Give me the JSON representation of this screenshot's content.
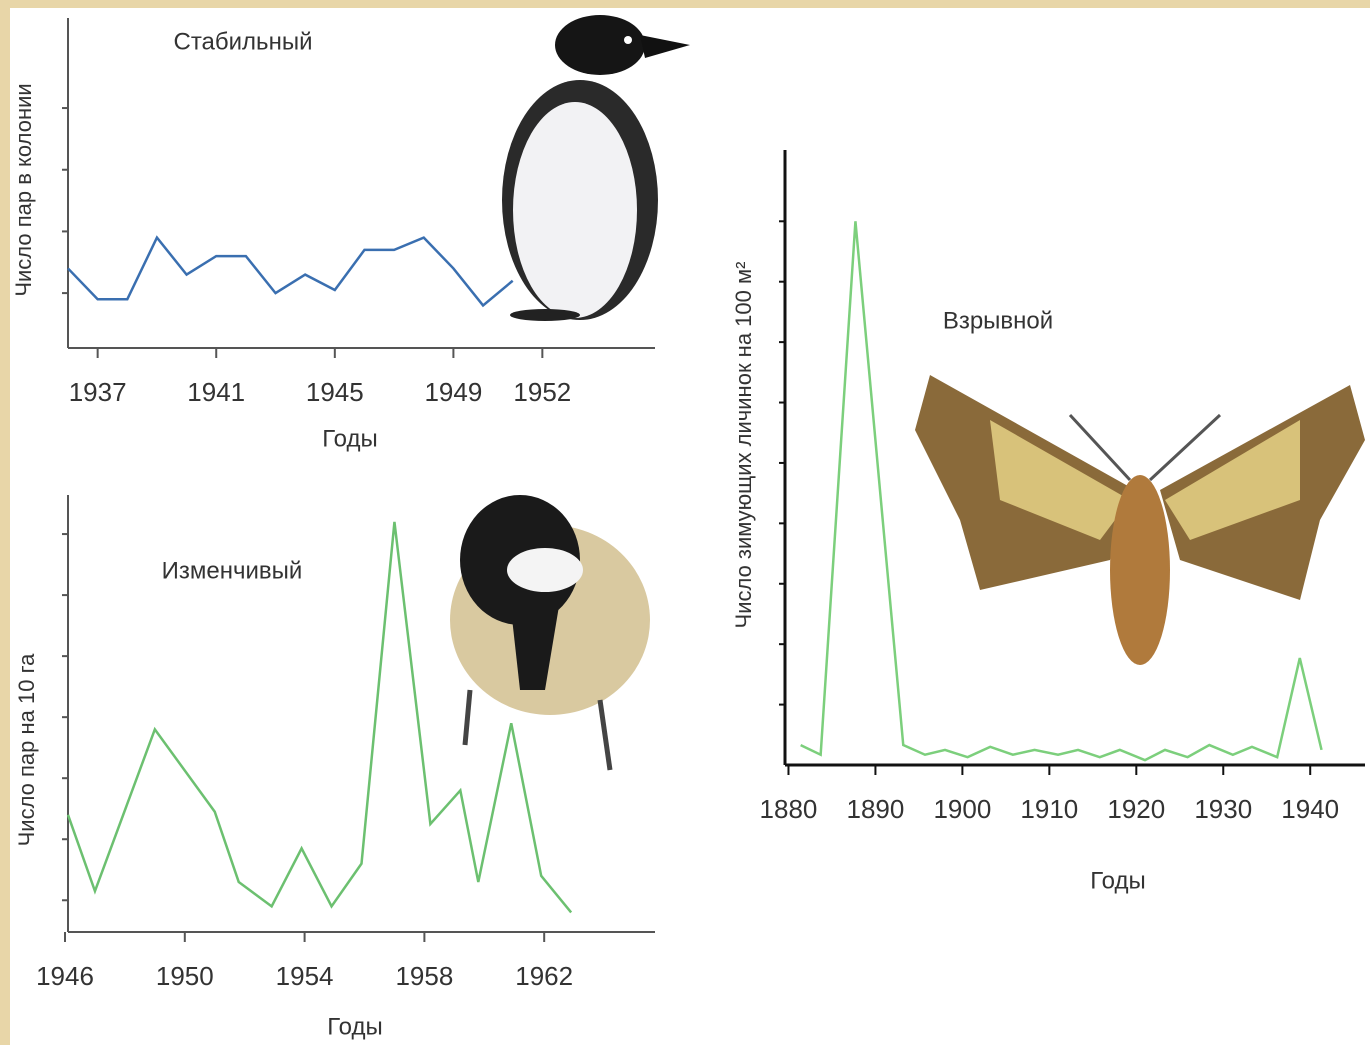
{
  "chart_data": [
    {
      "type": "line",
      "title": "Стабильный",
      "x_label": "Годы",
      "y_label": "Число пар в колонии",
      "x": [
        1936,
        1937,
        1938,
        1939,
        1940,
        1941,
        1942,
        1943,
        1944,
        1945,
        1946,
        1947,
        1948,
        1949,
        1950,
        1951
      ],
      "values": [
        1.4,
        0.9,
        0.9,
        1.9,
        1.3,
        1.6,
        1.6,
        1.0,
        1.3,
        1.05,
        1.7,
        1.7,
        1.9,
        1.4,
        0.8,
        1.2
      ],
      "color": "#3a6fb0",
      "xlim": [
        1936,
        1955.8
      ],
      "ylim": [
        0.11,
        5.46
      ],
      "xticks": [
        1937,
        1941,
        1945,
        1949,
        1952
      ],
      "yticks": [
        1,
        2,
        3,
        4
      ]
    },
    {
      "type": "line",
      "title": "Изменчивый",
      "x_label": "Годы",
      "y_label": "Число пар на 10 га",
      "x": [
        1946.1,
        1947,
        1949,
        1951,
        1951.8,
        1952.9,
        1953.9,
        1954.9,
        1955.9,
        1957,
        1958.2,
        1959.2,
        1959.8,
        1960.9,
        1961.9,
        1962.9
      ],
      "values": [
        1.4,
        0.15,
        2.8,
        1.45,
        0.3,
        -0.1,
        0.85,
        -0.1,
        0.6,
        6.2,
        1.25,
        1.8,
        0.3,
        2.9,
        0.4,
        -0.2
      ],
      "color": "#6cc070",
      "xlim": [
        1946.1,
        1965.7
      ],
      "ylim": [
        -0.52,
        6.64
      ],
      "xticks": [
        1946,
        1950,
        1954,
        1958,
        1962
      ],
      "yticks": [
        0,
        1,
        2,
        3,
        4,
        5,
        6
      ]
    },
    {
      "type": "line",
      "title": "Взрывной",
      "x_label": "Годы",
      "y_label": "Число зимующих личинок на 100 м²",
      "x": [
        1881.4,
        1883.7,
        1887.7,
        1893.2,
        1895.7,
        1898,
        1900.6,
        1903.2,
        1905.8,
        1908.3,
        1911,
        1913.3,
        1915.8,
        1918.1,
        1921,
        1923.3,
        1925.9,
        1928.4,
        1931.1,
        1933.3,
        1936.2,
        1938.8,
        1941.3
      ],
      "values": [
        3.3,
        1.7,
        90,
        3.3,
        1.7,
        2.5,
        1.3,
        3,
        1.7,
        2.5,
        1.7,
        2.5,
        1.3,
        2.5,
        0.8,
        2.5,
        1.3,
        3.3,
        1.7,
        3,
        1.3,
        17.7,
        2.5
      ],
      "color": "#7ccf7c",
      "xlim": [
        1879.6,
        1946.3
      ],
      "ylim": [
        0,
        101.8
      ],
      "xticks": [
        1880,
        1890,
        1900,
        1910,
        1920,
        1930,
        1940
      ],
      "yticks": [
        10,
        20,
        30,
        40,
        50,
        60,
        70,
        80,
        90
      ]
    }
  ]
}
